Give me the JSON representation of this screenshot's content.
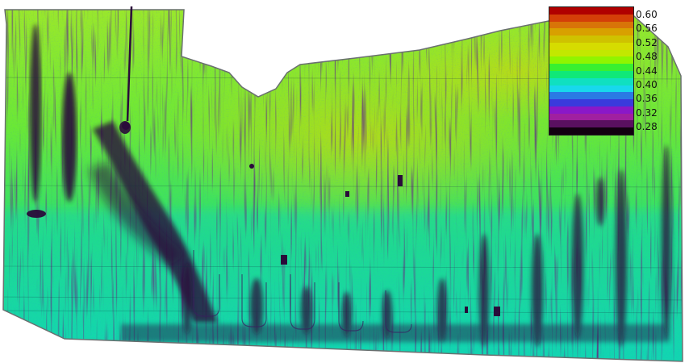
{
  "map": {
    "legend": {
      "labels": [
        "0.60",
        "0.56",
        "0.52",
        "0.48",
        "0.44",
        "0.40",
        "0.36",
        "0.32",
        "0.28"
      ],
      "bands": [
        {
          "color": "#b00000"
        },
        {
          "color": "#d43f08"
        },
        {
          "color": "#d87408"
        },
        {
          "color": "#d8a000"
        },
        {
          "color": "#cfc200"
        },
        {
          "color": "#d6dc00"
        },
        {
          "color": "#c2e800"
        },
        {
          "color": "#8ff500"
        },
        {
          "color": "#38f030"
        },
        {
          "color": "#10e878"
        },
        {
          "color": "#10e0c0"
        },
        {
          "color": "#18d8ec"
        },
        {
          "color": "#2a7ae4"
        },
        {
          "color": "#3a3adc"
        },
        {
          "color": "#8a18c8"
        },
        {
          "color": "#a020a0"
        },
        {
          "color": "#5a1060"
        },
        {
          "color": "#120010"
        }
      ]
    },
    "palette": {
      "field_base": "#38ea40",
      "field_high": "#b0e018",
      "field_low": "#12d4b8",
      "anomaly_dark": "#2a0a3a",
      "anomaly_mid": "#3030c0",
      "edge_gray": "#6a7070",
      "background": "#ffffff"
    }
  }
}
